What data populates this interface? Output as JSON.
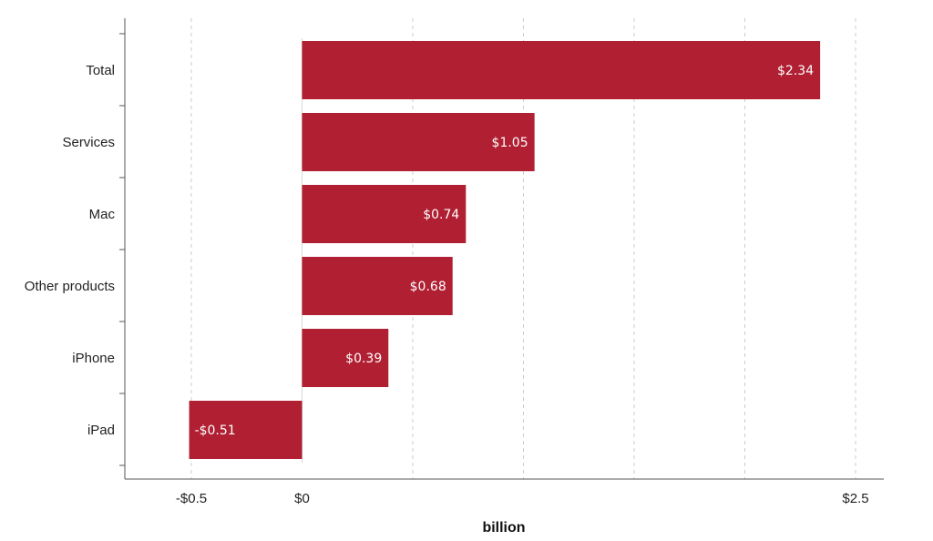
{
  "chart_data": {
    "type": "bar",
    "orientation": "horizontal",
    "title": "",
    "xlabel": "billion",
    "ylabel": "",
    "categories": [
      "Total",
      "Services",
      "Mac",
      "Other products",
      "iPhone",
      "iPad"
    ],
    "values": [
      2.34,
      1.05,
      0.74,
      0.68,
      0.39,
      -0.51
    ],
    "value_labels": [
      "$2.34",
      "$1.05",
      "$0.74",
      "$0.68",
      "$0.39",
      "-$0.51"
    ],
    "xlim": [
      -0.8,
      2.6
    ],
    "x_ticks": [
      {
        "value": -0.5,
        "label": "-$0.5"
      },
      {
        "value": 0,
        "label": "$0"
      },
      {
        "value": 2.5,
        "label": "$2.5"
      }
    ],
    "x_gridlines": [
      -0.5,
      0,
      0.5,
      1.0,
      1.5,
      2.0,
      2.5
    ],
    "grid": true,
    "grid_style": "dashed vertical",
    "bar_color": "#b01f32",
    "legend": "none"
  }
}
